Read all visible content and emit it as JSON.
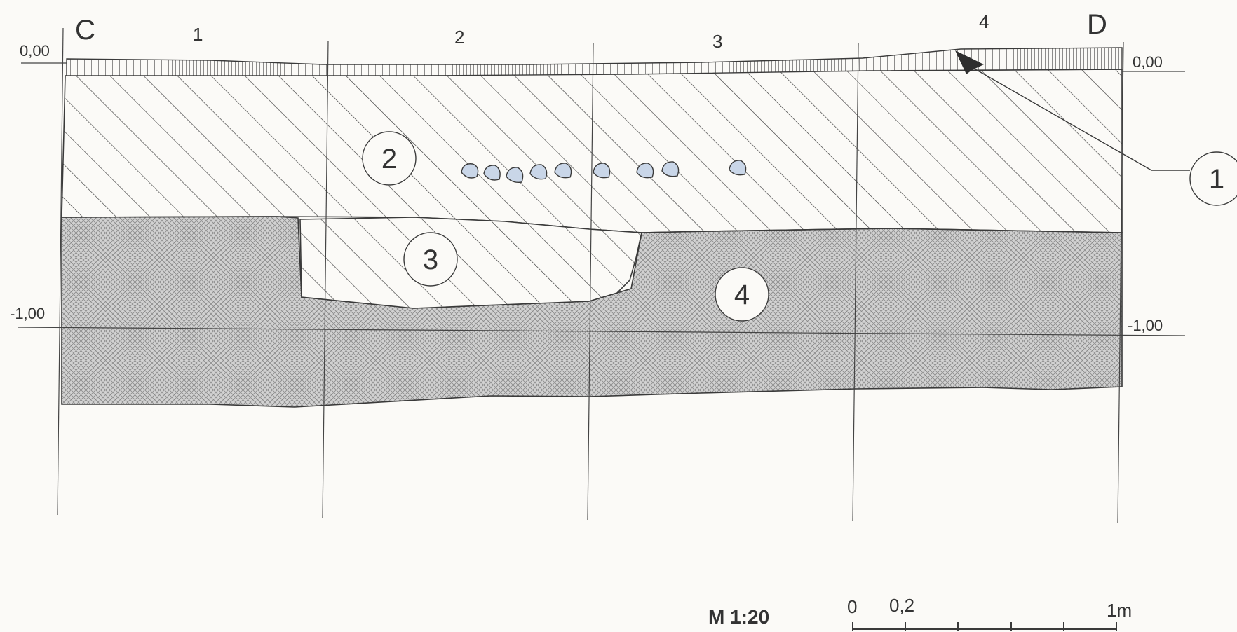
{
  "corners": {
    "left": "C",
    "right": "D"
  },
  "columns": [
    "1",
    "2",
    "3",
    "4"
  ],
  "levels": {
    "left_top": "0,00",
    "right_top": "0,00",
    "left_bottom": "-1,00",
    "right_bottom": "-1,00"
  },
  "layers": [
    {
      "number": "1",
      "name": "layer-1-topsoil"
    },
    {
      "number": "2",
      "name": "layer-2-hatched"
    },
    {
      "number": "3",
      "name": "layer-3-pit-fill"
    },
    {
      "number": "4",
      "name": "layer-4-crosshatched"
    }
  ],
  "stone_count": 9,
  "scale": {
    "ratio": "M 1:20",
    "tick_0": "0",
    "tick_02": "0,2",
    "tick_end": "1m"
  },
  "colors": {
    "line": "#3a3a3a",
    "stone_fill": "#c9d6e8",
    "crosshatch_fill": "#d2d2d2",
    "background": "#fbfaf7"
  }
}
